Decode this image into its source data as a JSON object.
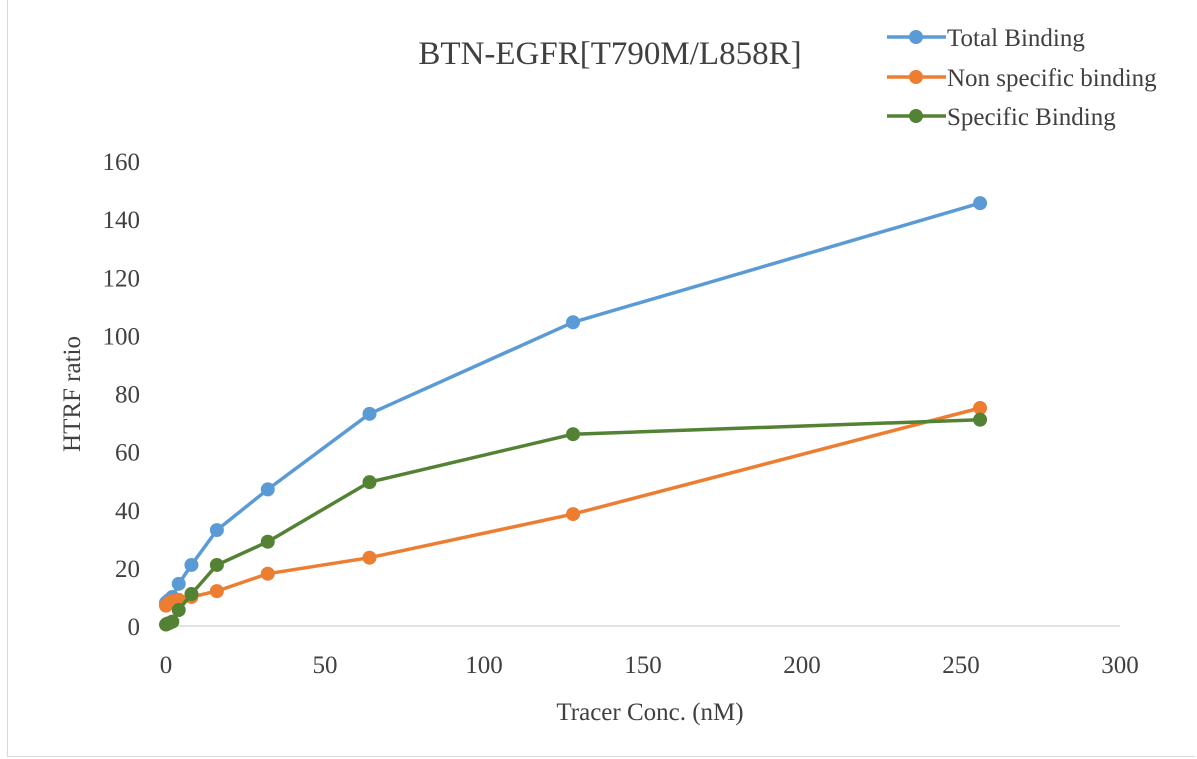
{
  "chart_data": {
    "type": "line",
    "title": "BTN-EGFR[T790M/L858R]",
    "xlabel": "Tracer Conc. (nM)",
    "ylabel": "HTRF ratio",
    "xlim": [
      0,
      300
    ],
    "ylim": [
      0,
      160
    ],
    "xticks": [
      "0",
      "50",
      "100",
      "150",
      "200",
      "250",
      "300"
    ],
    "yticks": [
      "0",
      "20",
      "40",
      "60",
      "80",
      "100",
      "120",
      "140",
      "160"
    ],
    "grid": false,
    "legend_position": "top-right",
    "x": [
      0,
      0.5,
      1,
      2,
      4,
      8,
      16,
      32,
      64,
      128,
      256
    ],
    "series": [
      {
        "name": "Total Binding",
        "color": "#5b9bd5",
        "values": [
          8,
          8.5,
          9,
          10,
          14.5,
          21,
          33,
          47,
          73,
          104.5,
          145.5
        ]
      },
      {
        "name": "Non specific binding",
        "color": "#ed7d31",
        "values": [
          7,
          7.5,
          8,
          8.5,
          9,
          10,
          12,
          18,
          23.5,
          38.5,
          75
        ]
      },
      {
        "name": "Specific Binding",
        "color": "#548235",
        "values": [
          0.5,
          0.8,
          1,
          1.5,
          5.5,
          11,
          21,
          29,
          49.5,
          66,
          71
        ]
      }
    ]
  }
}
